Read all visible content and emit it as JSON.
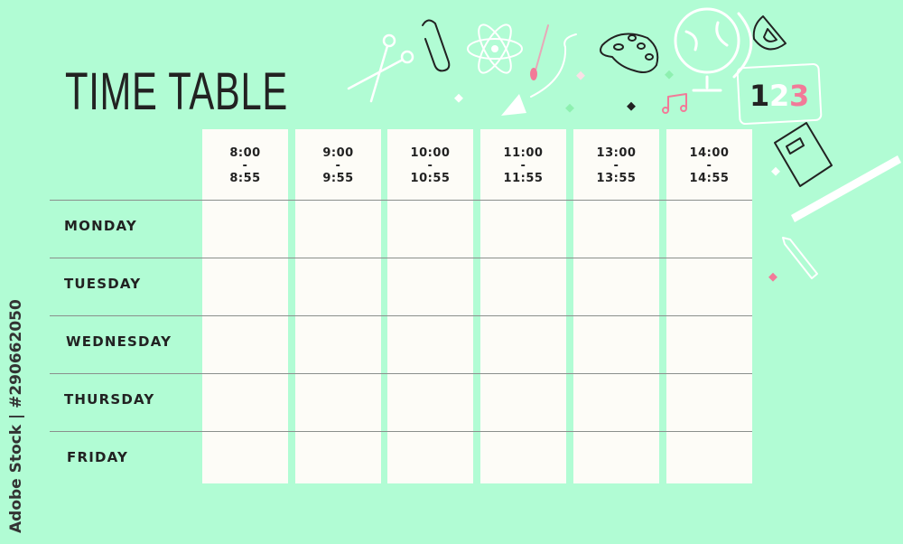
{
  "title": "TIME TABLE",
  "time_slots": [
    {
      "start": "8:00",
      "sep": "-",
      "end": "8:55"
    },
    {
      "start": "9:00",
      "sep": "-",
      "end": "9:55"
    },
    {
      "start": "10:00",
      "sep": "-",
      "end": "10:55"
    },
    {
      "start": "11:00",
      "sep": "-",
      "end": "11:55"
    },
    {
      "start": "13:00",
      "sep": "-",
      "end": "13:55"
    },
    {
      "start": "14:00",
      "sep": "-",
      "end": "14:55"
    }
  ],
  "days": [
    "MONDAY",
    "TUESDAY",
    "WEDNESDAY",
    "THURSDAY",
    "FRIDAY"
  ],
  "watermark": "Adobe Stock | #290662050",
  "number_card": [
    "1",
    "2",
    "3"
  ],
  "icons": [
    "scissors-icon",
    "paperclip-icon",
    "atom-icon",
    "paintbrush-icon",
    "paper-plane-icon",
    "palette-icon",
    "globe-icon",
    "protractor-icon",
    "music-note-icon",
    "number-card-icon",
    "book-icon",
    "ruler-icon",
    "pencil-icon"
  ],
  "colors": {
    "background": "#b1fcd4",
    "cell": "#fdfcf7",
    "text": "#222222",
    "accent_pink": "#f27a98"
  }
}
